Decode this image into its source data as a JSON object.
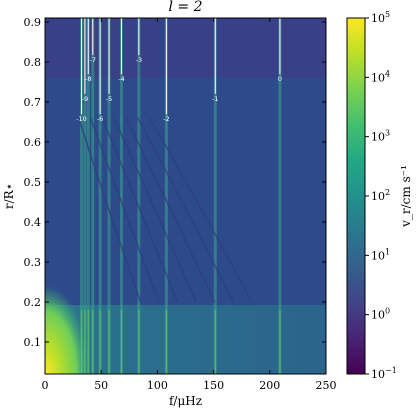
{
  "chart_data": {
    "type": "heatmap",
    "title": "l = 2",
    "xlabel": "f/μHz",
    "ylabel": "r/R⋆",
    "colorbar_label": "v_r/cm s⁻¹",
    "colorbar_scale": "log",
    "colormap": "viridis",
    "xlim": [
      0,
      250
    ],
    "ylim": [
      0.02,
      0.91
    ],
    "xticks": [
      "0",
      "50",
      "100",
      "150",
      "200",
      "250"
    ],
    "xtick_values": [
      0,
      50,
      100,
      150,
      200,
      250
    ],
    "yticks": [
      "0.1",
      "0.2",
      "0.3",
      "0.4",
      "0.5",
      "0.6",
      "0.7",
      "0.8",
      "0.9"
    ],
    "ytick_values": [
      0.1,
      0.2,
      0.3,
      0.4,
      0.5,
      0.6,
      0.7,
      0.8,
      0.9
    ],
    "colorbar_ticks": [
      {
        "base": "10",
        "exp": "5",
        "log": 5
      },
      {
        "base": "10",
        "exp": "4",
        "log": 4
      },
      {
        "base": "10",
        "exp": "3",
        "log": 3
      },
      {
        "base": "10",
        "exp": "2",
        "log": 2
      },
      {
        "base": "10",
        "exp": "1",
        "log": 1
      },
      {
        "base": "10",
        "exp": "0",
        "log": 0
      },
      {
        "base": "10",
        "exp": "−1",
        "log": -1
      }
    ],
    "colorbar_range": [
      -1,
      5
    ],
    "mode_markers": [
      {
        "label": "-10",
        "f": 32.5,
        "label_r": 0.657
      },
      {
        "label": "-9",
        "f": 35.5,
        "label_r": 0.708
      },
      {
        "label": "-8",
        "f": 38.5,
        "label_r": 0.757
      },
      {
        "label": "-7",
        "f": 42.5,
        "label_r": 0.805
      },
      {
        "label": "-6",
        "f": 49.0,
        "label_r": 0.657
      },
      {
        "label": "-5",
        "f": 57.0,
        "label_r": 0.708
      },
      {
        "label": "-4",
        "f": 68.0,
        "label_r": 0.757
      },
      {
        "label": "-3",
        "f": 83.5,
        "label_r": 0.805
      },
      {
        "label": "-2",
        "f": 108.0,
        "label_r": 0.657
      },
      {
        "label": "-1",
        "f": 151.5,
        "label_r": 0.708
      },
      {
        "label": "0",
        "f": 209.0,
        "label_r": 0.757
      }
    ]
  }
}
